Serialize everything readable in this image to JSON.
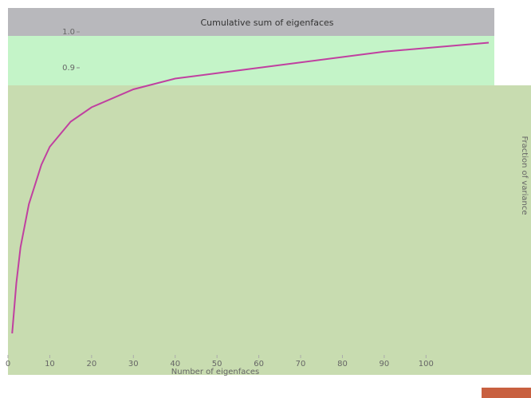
{
  "chart_data": {
    "type": "line",
    "title": "Cumulative sum of eigenfaces",
    "x_label": "Number of eigenfaces",
    "y_label": "Fraction of variance",
    "x": [
      1,
      2,
      3,
      5,
      8,
      10,
      15,
      20,
      30,
      40,
      50,
      60,
      70,
      80,
      90,
      100,
      110,
      115
    ],
    "values": [
      0.16,
      0.3,
      0.4,
      0.52,
      0.63,
      0.68,
      0.75,
      0.79,
      0.84,
      0.87,
      0.885,
      0.9,
      0.915,
      0.93,
      0.945,
      0.955,
      0.965,
      0.97
    ],
    "color": "#c040a0",
    "xlim": [
      0,
      115
    ],
    "xticks": [
      0,
      10,
      20,
      30,
      40,
      50,
      60,
      70,
      80,
      90,
      100
    ],
    "ylim": [
      0.1,
      1.0
    ],
    "yticks": [
      0.9,
      {
        "value": 1.0,
        "label": "1.0"
      }
    ]
  }
}
